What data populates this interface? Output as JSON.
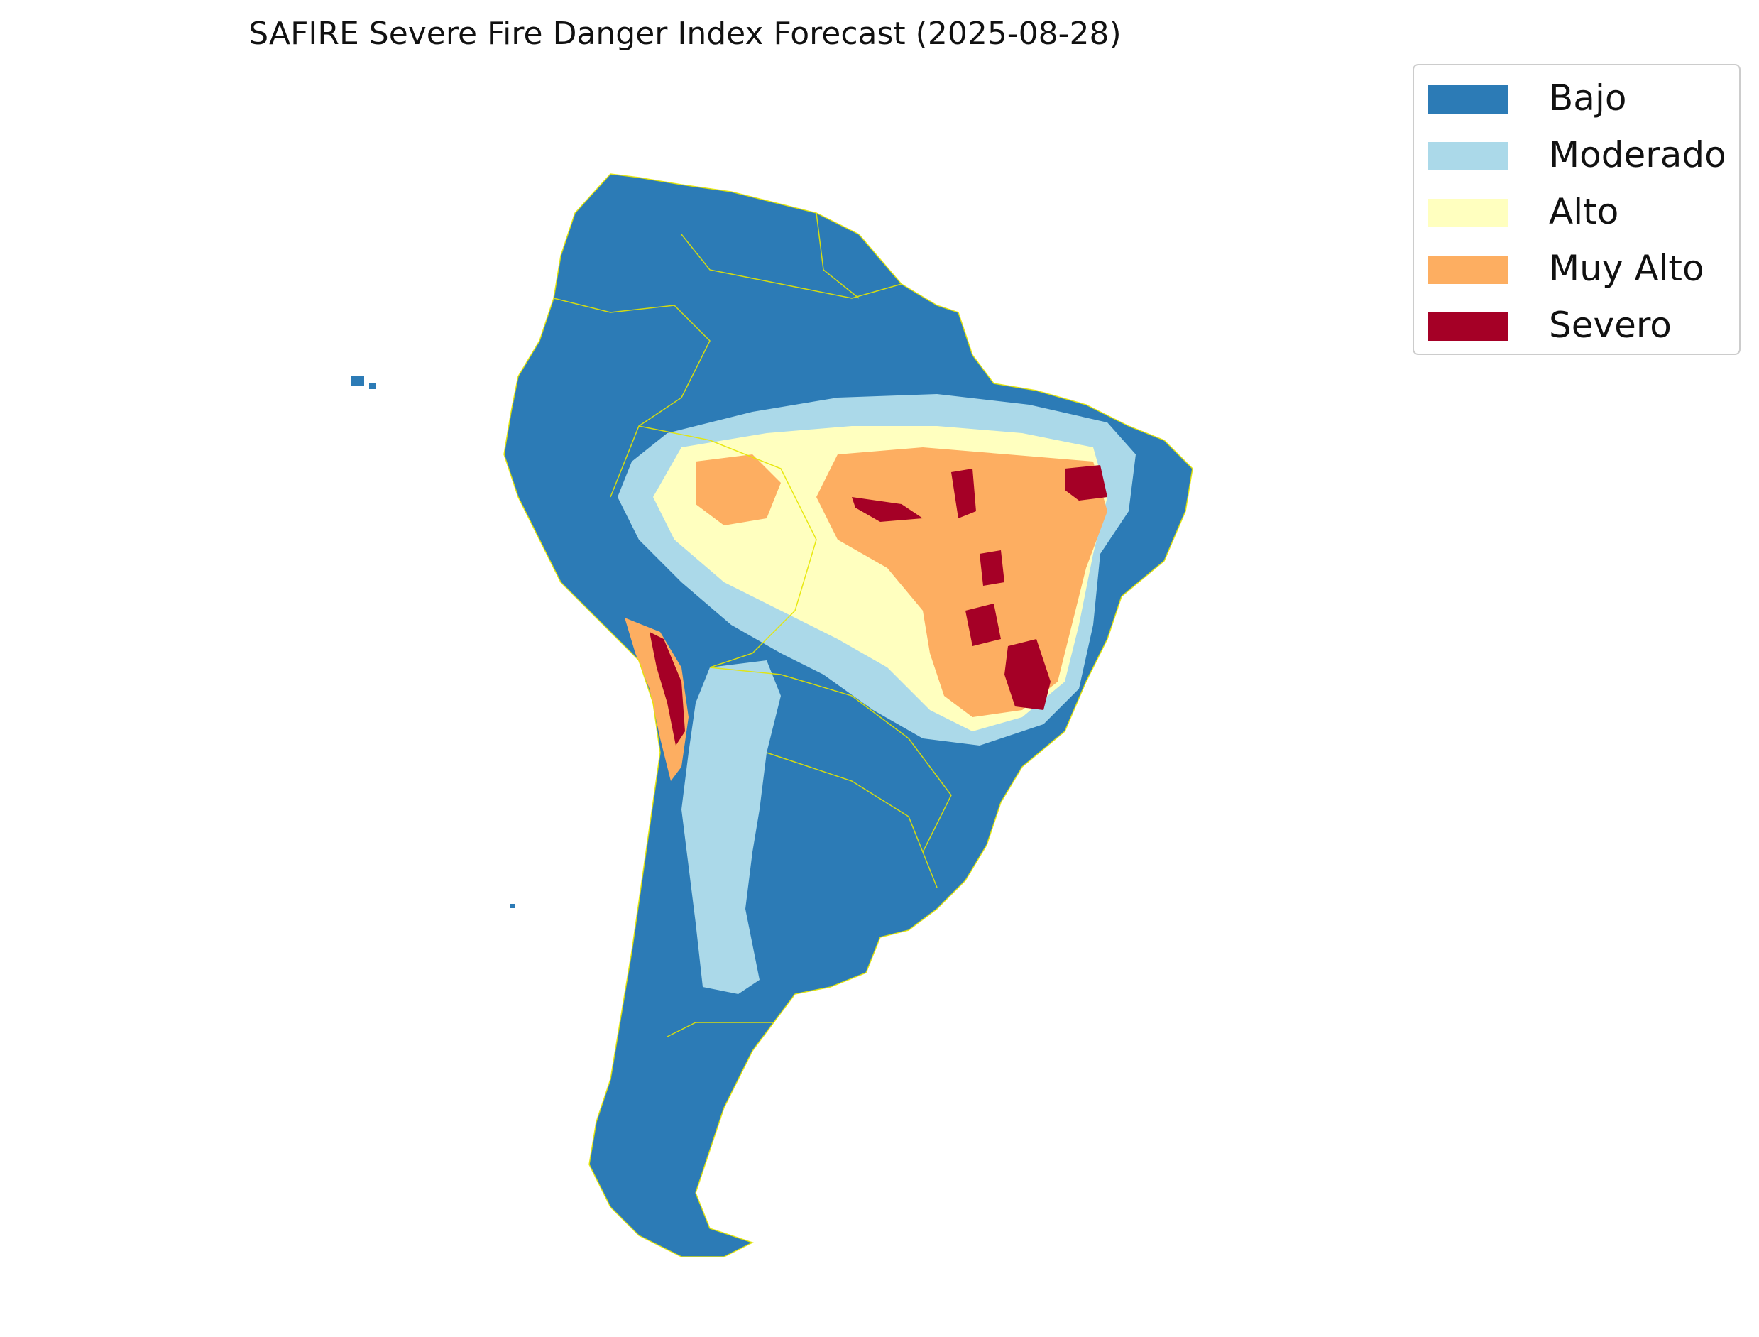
{
  "title": "SAFIRE Severe Fire Danger Index Forecast (2025-08-28)",
  "legend": {
    "items": [
      {
        "label": "Bajo",
        "color": "#2c7bb6"
      },
      {
        "label": "Moderado",
        "color": "#abd9e9"
      },
      {
        "label": "Alto",
        "color": "#ffffbf"
      },
      {
        "label": "Muy Alto",
        "color": "#fdae61"
      },
      {
        "label": "Severo",
        "color": "#a50026"
      }
    ],
    "placement": "top-right"
  },
  "map": {
    "region": "South America",
    "border_color": "#e6e600",
    "background": "#ffffff"
  }
}
